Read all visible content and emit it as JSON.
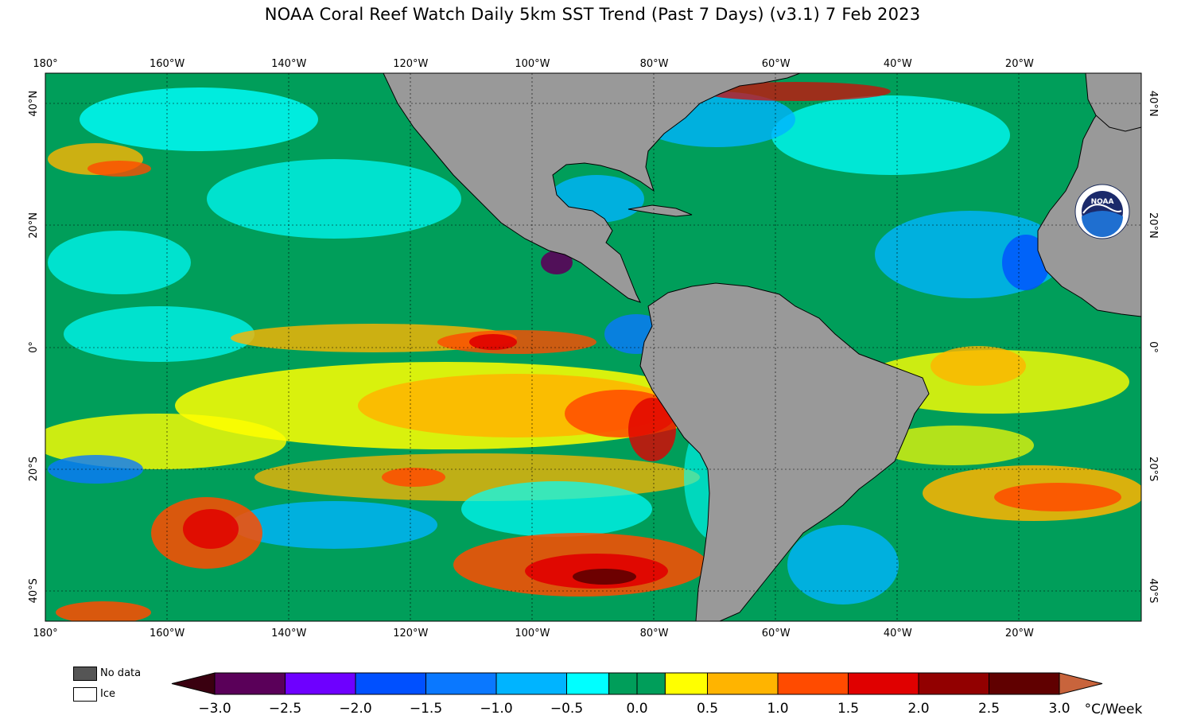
{
  "title": "NOAA Coral Reef Watch Daily 5km SST Trend (Past 7 Days)  (v3.1)   7 Feb 2023",
  "map": {
    "lon_ticks": [
      "180°",
      "160°W",
      "140°W",
      "120°W",
      "100°W",
      "80°W",
      "60°W",
      "40°W",
      "20°W"
    ],
    "lat_ticks": [
      "40°N",
      "20°N",
      "0°",
      "20°S",
      "40°S"
    ],
    "land_color": "#999999",
    "projection": "equirectangular",
    "extent": {
      "lon": [
        -180,
        0
      ],
      "lat": [
        -45,
        45
      ]
    },
    "logo": "noaa-logo"
  },
  "legend": {
    "no_data_label": "No data",
    "no_data_color": "#555555",
    "ice_label": "Ice",
    "ice_color": "#ffffff"
  },
  "colorbar": {
    "unit": "°C/Week",
    "tick_labels": [
      "−3.0",
      "−2.5",
      "−2.0",
      "−1.5",
      "−1.0",
      "−0.5",
      "0.0",
      "0.5",
      "1.0",
      "1.5",
      "2.0",
      "2.5",
      "3.0"
    ],
    "colors": [
      "#5a0059",
      "#6e00ff",
      "#0050ff",
      "#0a78ff",
      "#00b4ff",
      "#00ffff",
      "#009e5a",
      "#009e5a",
      "#ffff00",
      "#ffb400",
      "#ff4b00",
      "#e00000",
      "#920000",
      "#600000"
    ],
    "under_color": "#3a0010",
    "over_color": "#c8643c"
  }
}
